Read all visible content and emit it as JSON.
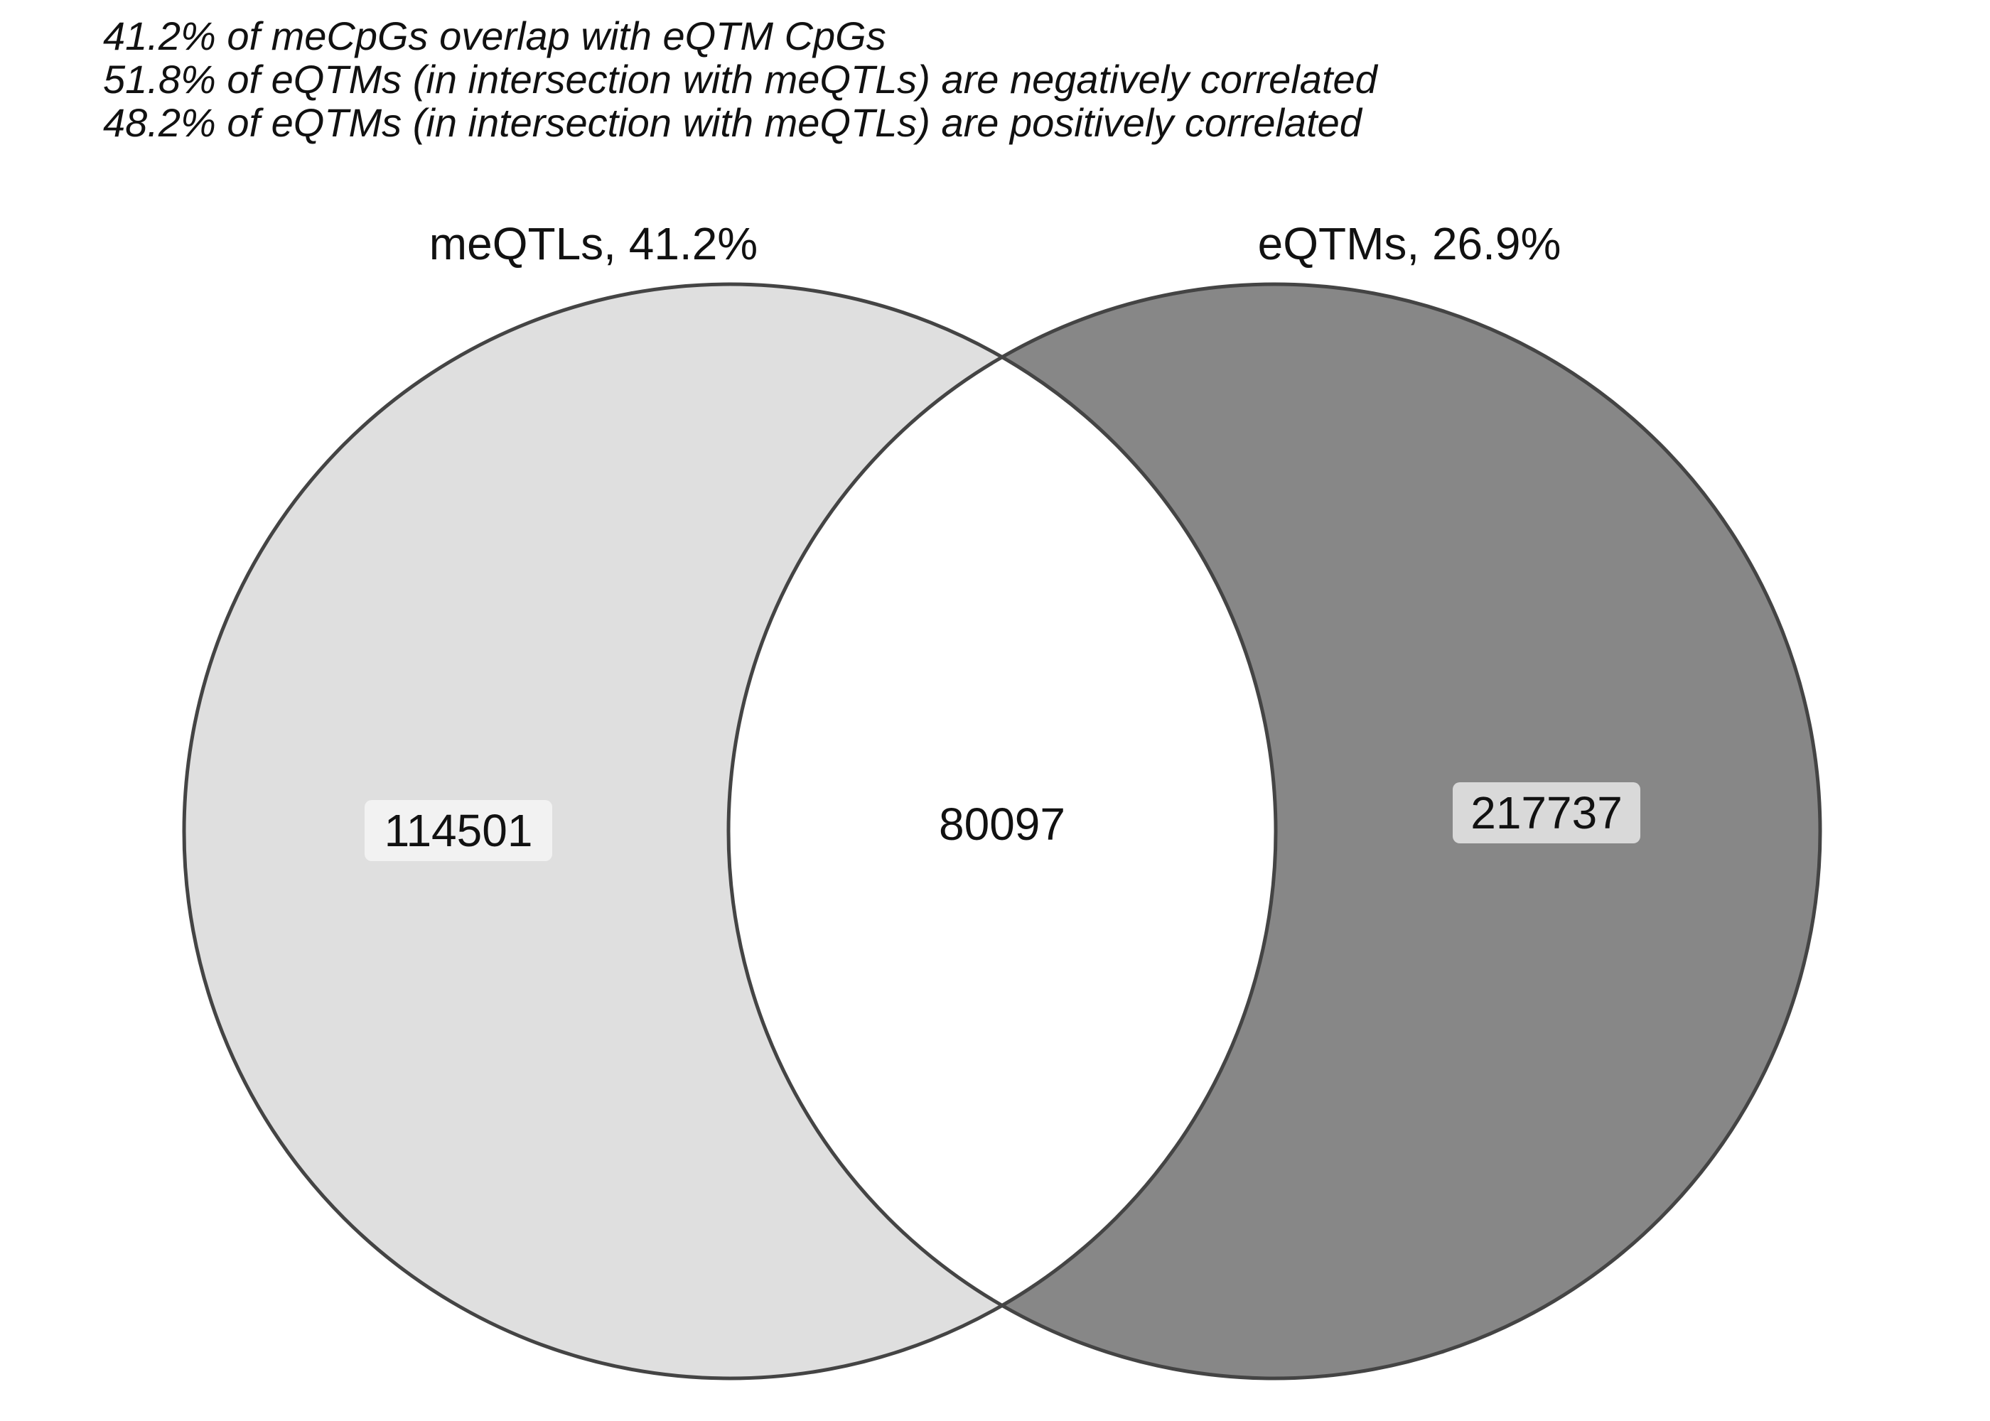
{
  "stats": {
    "line1": "41.2% of meCpGs overlap with eQTM CpGs",
    "line2": "51.8% of eQTMs (in intersection with meQTLs) are negatively correlated",
    "line3": "48.2% of eQTMs (in intersection with meQTLs) are positively correlated"
  },
  "sets": {
    "left": {
      "label": "meQTLs, 41.2%",
      "only_count": "114501",
      "fill": "#dfdfdf",
      "badge_fill": "#f2f2f2"
    },
    "right": {
      "label": "eQTMs, 26.9%",
      "only_count": "217737",
      "fill": "#878787",
      "badge_fill": "#d9d9d9"
    },
    "intersection": {
      "count": "80097",
      "fill": "#ffffff"
    },
    "outline_color": "#444444"
  }
}
